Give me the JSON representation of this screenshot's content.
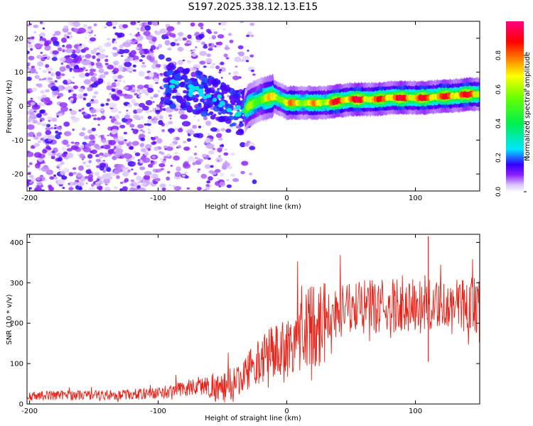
{
  "title": "S197.2025.338.12.13.E15",
  "chart_data": [
    {
      "type": "heatmap",
      "title": "S197.2025.338.12.13.E15",
      "xlabel": "Height of straight line (km)",
      "ylabel": "Frequency (Hz)",
      "xlim": [
        -202,
        150
      ],
      "ylim": [
        -25,
        25
      ],
      "xticks": [
        "-200",
        "-100",
        "0",
        "100"
      ],
      "yticks": [
        "-20",
        "-10",
        "0",
        "10",
        "20"
      ],
      "colorbar": {
        "label": "Normalized spectral amplitude",
        "range": [
          0.0,
          1.0
        ],
        "ticks": [
          "0.0",
          "0.2",
          "0.4",
          "0.6",
          "0.8"
        ]
      },
      "ridge": {
        "x": [
          -90,
          -80,
          -70,
          -60,
          -50,
          -40,
          -35,
          -30,
          -20,
          -10,
          0,
          10,
          20,
          30,
          40,
          50,
          60,
          70,
          80,
          90,
          100,
          110,
          120,
          130,
          140,
          150
        ],
        "freq": [
          6,
          5,
          4,
          3,
          1,
          -1,
          -3,
          0,
          2,
          3,
          1,
          1,
          1,
          1,
          1.5,
          2,
          2,
          2,
          2.5,
          2.5,
          2.5,
          2.5,
          3,
          3,
          3.5,
          3.5
        ],
        "amplitude": [
          0.25,
          0.25,
          0.25,
          0.3,
          0.3,
          0.3,
          0.3,
          0.6,
          0.7,
          0.75,
          0.8,
          0.8,
          0.75,
          0.85,
          0.95,
          0.95,
          0.95,
          0.85,
          0.95,
          0.95,
          0.9,
          0.95,
          0.9,
          0.95,
          0.95,
          0.9
        ]
      }
    },
    {
      "type": "line",
      "xlabel": "Height of straight line (km)",
      "ylabel": "SNR (10 * v/v)",
      "xlim": [
        -202,
        150
      ],
      "ylim": [
        0,
        420
      ],
      "xticks": [
        "-200",
        "-100",
        "0",
        "100"
      ],
      "yticks": [
        "0",
        "100",
        "200",
        "300",
        "400"
      ],
      "series": [
        {
          "name": "SNR",
          "color": "#e8241a",
          "x": [
            -200,
            -180,
            -160,
            -140,
            -120,
            -100,
            -90,
            -80,
            -70,
            -60,
            -50,
            -40,
            -30,
            -20,
            -10,
            0,
            10,
            20,
            30,
            40,
            50,
            60,
            70,
            80,
            90,
            100,
            110,
            120,
            130,
            140,
            150
          ],
          "y": [
            20,
            22,
            22,
            22,
            24,
            27,
            32,
            38,
            45,
            45,
            38,
            55,
            85,
            110,
            130,
            140,
            170,
            195,
            215,
            230,
            235,
            240,
            240,
            242,
            245,
            245,
            240,
            245,
            245,
            248,
            245
          ]
        }
      ],
      "spikes": [
        {
          "x": 110,
          "y": 415
        },
        {
          "x": 110,
          "y": 105
        }
      ]
    }
  ]
}
